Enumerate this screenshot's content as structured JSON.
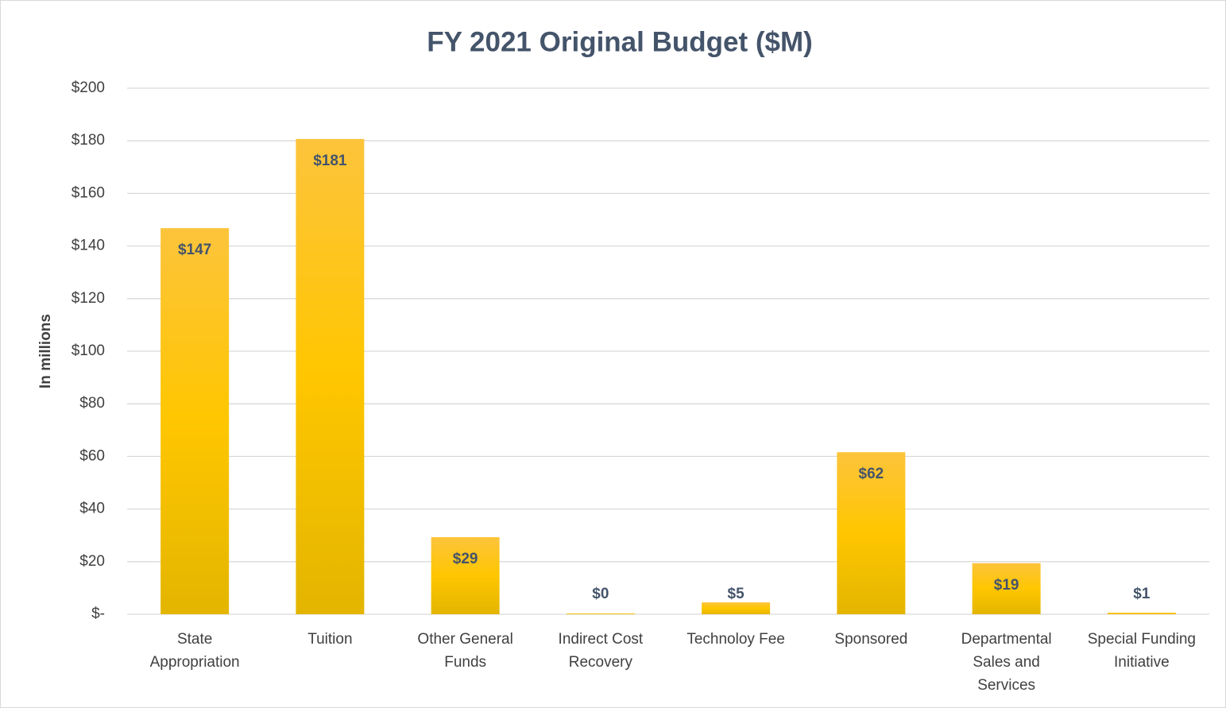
{
  "chart_data": {
    "type": "bar",
    "title": "FY 2021 Original Budget ($M)",
    "ylabel": "In millions",
    "categories": [
      "State Appropriation",
      "Tuition",
      "Other General Funds",
      "Indirect Cost Recovery",
      "Technoloy Fee",
      "Sponsored",
      "Departmental Sales and Services",
      "Special Funding Initiative"
    ],
    "values": [
      146.8,
      180.7,
      29.3,
      0.3,
      4.5,
      61.6,
      19.4,
      0.6
    ],
    "value_labels": [
      "$147",
      "$181",
      "$29",
      "$0",
      "$5",
      "$62",
      "$19",
      "$1"
    ],
    "color": "#ffc600",
    "ylim": [
      0,
      200
    ],
    "yticks": [
      {
        "value": 0,
        "label": "$-"
      },
      {
        "value": 20,
        "label": "$20"
      },
      {
        "value": 40,
        "label": "$40"
      },
      {
        "value": 60,
        "label": "$60"
      },
      {
        "value": 80,
        "label": "$80"
      },
      {
        "value": 100,
        "label": "$100"
      },
      {
        "value": 120,
        "label": "$120"
      },
      {
        "value": 140,
        "label": "$140"
      },
      {
        "value": 160,
        "label": "$160"
      },
      {
        "value": 180,
        "label": "$180"
      },
      {
        "value": 200,
        "label": "$200"
      }
    ],
    "grid": true
  }
}
